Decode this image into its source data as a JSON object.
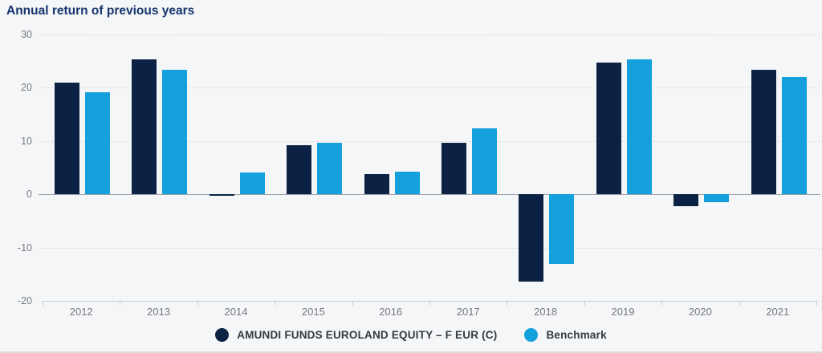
{
  "page": {
    "title": "Annual return of previous years"
  },
  "colors": {
    "background": "#f5f6f7",
    "title_text": "#16356e",
    "fund_bar": "#0b2244",
    "benchmark_bar": "#14a0dc",
    "axis_text": "#75797e",
    "gridline": "#dcdfe2",
    "zero_line": "#9ba0a4",
    "axis_line": "#c9ced2",
    "legend_text": "#333a42"
  },
  "chart_data": {
    "type": "bar",
    "title": "Annual return of previous years",
    "xlabel": "",
    "ylabel": "",
    "categories": [
      "2012",
      "2013",
      "2014",
      "2015",
      "2016",
      "2017",
      "2018",
      "2019",
      "2020",
      "2021"
    ],
    "series": [
      {
        "name": "AMUNDI FUNDS EUROLAND EQUITY – F EUR (C)",
        "color": "#0b2244",
        "values": [
          21.0,
          25.3,
          -0.3,
          9.2,
          3.8,
          9.7,
          -16.4,
          24.7,
          -2.3,
          23.3
        ]
      },
      {
        "name": "Benchmark",
        "color": "#14a0dc",
        "values": [
          19.2,
          23.3,
          4.1,
          9.7,
          4.3,
          12.4,
          -13.0,
          25.4,
          -1.5,
          22.0
        ]
      }
    ],
    "yticks": [
      30,
      20,
      10,
      0,
      -10,
      -20
    ],
    "ylim": [
      -20,
      30
    ],
    "grid": "horizontal-dashed",
    "legend_position": "bottom-center"
  }
}
